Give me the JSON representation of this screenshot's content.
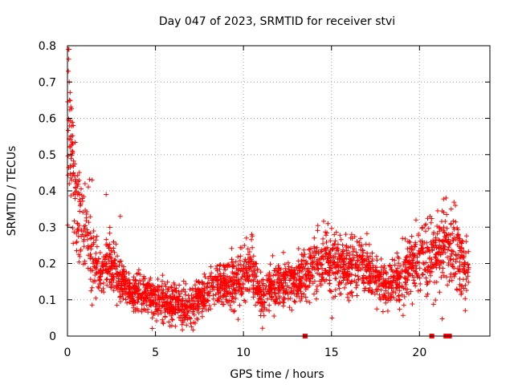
{
  "chart_data": {
    "type": "scatter",
    "title": "Day 047 of 2023, SRMTID for receiver stvi",
    "xlabel": "GPS time / hours",
    "ylabel": "SRMTID / TECUs",
    "xlim": [
      0,
      24
    ],
    "ylim": [
      0,
      0.8
    ],
    "xticks": [
      0,
      5,
      10,
      15,
      20
    ],
    "yticks": [
      0,
      0.1,
      0.2,
      0.3,
      0.4,
      0.5,
      0.6,
      0.7,
      0.8
    ],
    "xtick_labels": [
      "0",
      "5",
      "10",
      "15",
      "20"
    ],
    "ytick_labels": [
      "0",
      "0.1",
      "0.2",
      "0.3",
      "0.4",
      "0.5",
      "0.6",
      "0.7",
      "0.8"
    ],
    "grid": true,
    "marker": "plus",
    "series_color": "#ff0000",
    "trend": {
      "x": [
        0.0,
        0.1,
        0.2,
        0.3,
        0.5,
        0.7,
        1.0,
        1.3,
        1.6,
        2.0,
        2.3,
        2.7,
        3.0,
        3.5,
        4.0,
        4.5,
        5.0,
        5.5,
        6.0,
        6.5,
        7.0,
        7.5,
        8.0,
        8.5,
        9.0,
        9.5,
        10.0,
        10.5,
        11.0,
        11.3,
        11.7,
        12.0,
        12.5,
        13.0,
        13.5,
        14.0,
        14.5,
        15.0,
        15.5,
        16.0,
        16.5,
        17.0,
        17.5,
        18.0,
        18.5,
        19.0,
        19.5,
        20.0,
        20.5,
        21.0,
        21.5,
        22.0,
        22.5,
        22.8
      ],
      "y": [
        0.68,
        0.6,
        0.52,
        0.45,
        0.37,
        0.32,
        0.28,
        0.25,
        0.2,
        0.17,
        0.2,
        0.18,
        0.15,
        0.13,
        0.12,
        0.11,
        0.1,
        0.09,
        0.09,
        0.08,
        0.09,
        0.1,
        0.13,
        0.15,
        0.14,
        0.15,
        0.17,
        0.19,
        0.1,
        0.12,
        0.14,
        0.14,
        0.16,
        0.15,
        0.17,
        0.18,
        0.21,
        0.21,
        0.19,
        0.2,
        0.19,
        0.18,
        0.16,
        0.14,
        0.15,
        0.17,
        0.2,
        0.22,
        0.2,
        0.22,
        0.24,
        0.24,
        0.19,
        0.2
      ]
    },
    "outliers": [
      {
        "x": 0.05,
        "y": 0.73
      },
      {
        "x": 0.1,
        "y": 0.7
      },
      {
        "x": 0.12,
        "y": 0.65
      },
      {
        "x": 0.2,
        "y": 0.55
      },
      {
        "x": 0.3,
        "y": 0.53
      },
      {
        "x": 0.45,
        "y": 0.41
      },
      {
        "x": 1.0,
        "y": 0.42
      },
      {
        "x": 1.4,
        "y": 0.43
      },
      {
        "x": 2.2,
        "y": 0.39
      },
      {
        "x": 3.0,
        "y": 0.33
      },
      {
        "x": 14.8,
        "y": 0.31
      },
      {
        "x": 19.8,
        "y": 0.32
      },
      {
        "x": 20.6,
        "y": 0.33
      },
      {
        "x": 21.8,
        "y": 0.35
      },
      {
        "x": 22.6,
        "y": 0.07
      }
    ],
    "zero_markers": [
      {
        "x": 13.5,
        "y": 0
      },
      {
        "x": 20.7,
        "y": 0
      },
      {
        "x": 21.5,
        "y": 0
      },
      {
        "x": 21.7,
        "y": 0
      }
    ],
    "approx_point_count": 2600
  }
}
